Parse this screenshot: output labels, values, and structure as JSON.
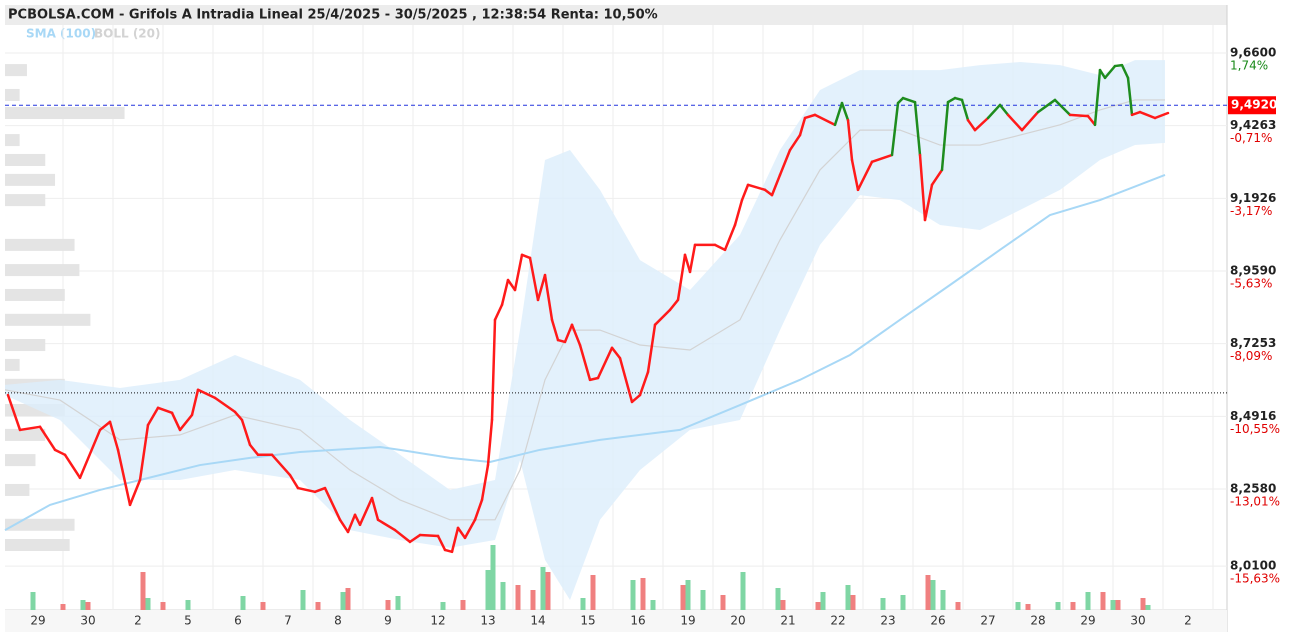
{
  "chart_data": {
    "type": "line",
    "title": "PCBOLSA.COM - Grifols A Intradia Lineal 25/4/2025 - 30/5/2025 , 12:38:54 Renta: 10,50%",
    "xlim": [
      -0.66,
      23.74
    ],
    "ylim": [
      7.869,
      9.75
    ],
    "categories": [
      "29",
      "30",
      "2",
      "5",
      "6",
      "7",
      "8",
      "9",
      "12",
      "13",
      "14",
      "15",
      "16",
      "19",
      "20",
      "21",
      "22",
      "23",
      "26",
      "27",
      "28",
      "29",
      "30",
      "2"
    ],
    "yticks": [
      {
        "value": 9.66,
        "label": "9,6600"
      },
      {
        "value": 9.4263,
        "label": "9,4263"
      },
      {
        "value": 9.1926,
        "label": "9,1926"
      },
      {
        "value": 8.959,
        "label": "8,9590"
      },
      {
        "value": 8.7253,
        "label": "8,7253"
      },
      {
        "value": 8.4916,
        "label": "8,4916"
      },
      {
        "value": 8.258,
        "label": "8,2580"
      },
      {
        "value": 8.01,
        "label": "8,0100"
      }
    ],
    "pct_ticks": [
      {
        "value": 1.74,
        "label": "1,74%"
      },
      {
        "value": -0.71,
        "label": "-0,71%"
      },
      {
        "value": -3.17,
        "label": "-3,17%"
      },
      {
        "value": -5.63,
        "label": "-5,63%"
      },
      {
        "value": -8.09,
        "label": "-8,09%"
      },
      {
        "value": -10.55,
        "label": "-10,55%"
      },
      {
        "value": -13.01,
        "label": "-13,01%"
      },
      {
        "value": -15.63,
        "label": "-15,63%"
      }
    ],
    "pos_color": "#1a8a1a",
    "neg_color": "#e00000",
    "grid": true,
    "price": {
      "up_color": "#1e8c1e",
      "down_color": "#ff1a1a",
      "x": [
        -0.6,
        -0.36,
        0.04,
        0.34,
        0.54,
        0.84,
        1.24,
        1.44,
        1.6,
        1.84,
        2.04,
        2.2,
        2.4,
        2.68,
        2.84,
        3.08,
        3.2,
        3.54,
        3.94,
        4.08,
        4.24,
        4.4,
        4.68,
        5.04,
        5.2,
        5.54,
        5.74,
        6.04,
        6.2,
        6.34,
        6.44,
        6.68,
        6.8,
        7.14,
        7.44,
        7.64,
        8.0,
        8.14,
        8.28,
        8.4,
        8.54,
        8.74,
        8.88,
        9.0,
        9.08,
        9.14,
        9.28,
        9.4,
        9.54,
        9.68,
        9.84,
        10.0,
        10.14,
        10.28,
        10.4,
        10.54,
        10.68,
        10.84,
        11.04,
        11.2,
        11.48,
        11.64,
        11.88,
        12.04,
        12.2,
        12.34,
        12.64,
        12.8,
        12.94,
        13.04,
        13.14,
        13.54,
        13.74,
        13.94,
        14.08,
        14.2,
        14.54,
        14.68,
        14.84,
        15.04,
        15.24,
        15.34,
        15.54,
        15.94,
        16.08,
        16.2,
        16.28,
        16.4,
        16.68,
        17.08,
        17.2,
        17.3,
        17.54,
        17.64,
        17.74,
        17.88,
        18.08,
        18.2,
        18.34,
        18.48,
        18.6,
        18.74,
        19.0,
        19.24,
        19.4,
        19.68,
        20.0,
        20.34,
        20.64,
        21.0,
        21.14,
        21.24,
        21.34,
        21.54,
        21.68,
        21.8,
        21.88,
        22.04,
        22.34,
        22.6
      ],
      "values": [
        8.56,
        8.448,
        8.458,
        8.384,
        8.368,
        8.294,
        8.448,
        8.474,
        8.384,
        8.207,
        8.287,
        8.464,
        8.519,
        8.503,
        8.448,
        8.496,
        8.577,
        8.551,
        8.506,
        8.48,
        8.4,
        8.368,
        8.368,
        8.303,
        8.261,
        8.249,
        8.261,
        8.159,
        8.12,
        8.175,
        8.143,
        8.229,
        8.159,
        8.126,
        8.088,
        8.11,
        8.107,
        8.062,
        8.056,
        8.133,
        8.101,
        8.159,
        8.223,
        8.335,
        8.48,
        8.802,
        8.85,
        8.93,
        8.898,
        9.011,
        9.001,
        8.866,
        8.946,
        8.802,
        8.737,
        8.731,
        8.786,
        8.721,
        8.609,
        8.615,
        8.712,
        8.679,
        8.538,
        8.56,
        8.634,
        8.786,
        8.834,
        8.866,
        9.011,
        8.956,
        9.043,
        9.043,
        9.027,
        9.107,
        9.187,
        9.236,
        9.22,
        9.203,
        9.268,
        9.348,
        9.396,
        9.451,
        9.461,
        9.429,
        9.499,
        9.444,
        9.316,
        9.22,
        9.31,
        9.332,
        9.499,
        9.515,
        9.502,
        9.332,
        9.123,
        9.236,
        9.284,
        9.502,
        9.515,
        9.509,
        9.444,
        9.412,
        9.451,
        9.493,
        9.461,
        9.412,
        9.47,
        9.509,
        9.461,
        9.457,
        9.429,
        9.605,
        9.58,
        9.618,
        9.621,
        9.58,
        9.461,
        9.47,
        9.451,
        9.467
      ]
    },
    "sma": {
      "name": "SMA (100)",
      "color": "#a8d8f6",
      "x": [
        -0.66,
        0.24,
        1.24,
        2.04,
        3.24,
        4.24,
        5.24,
        6.84,
        7.24,
        8.24,
        9.04,
        10.04,
        11.24,
        12.84,
        14.04,
        15.24,
        16.24,
        17.24,
        18.24,
        19.24,
        20.24,
        21.24,
        22.54
      ],
      "values": [
        8.126,
        8.207,
        8.255,
        8.287,
        8.335,
        8.358,
        8.377,
        8.393,
        8.384,
        8.358,
        8.345,
        8.384,
        8.416,
        8.448,
        8.528,
        8.609,
        8.689,
        8.802,
        8.914,
        9.027,
        9.139,
        9.187,
        9.268
      ]
    },
    "boll": {
      "name": "BOLL (20)",
      "color": "#d3d3d3",
      "fill": "#dcedfb",
      "x": [
        -0.66,
        0.44,
        1.64,
        2.84,
        3.94,
        5.24,
        6.24,
        7.24,
        8.24,
        9.14,
        9.64,
        10.14,
        10.64,
        11.24,
        12.04,
        13.04,
        14.04,
        14.84,
        15.64,
        16.44,
        17.24,
        18.04,
        18.84,
        19.64,
        20.44,
        21.24,
        21.94,
        22.54
      ],
      "upper": [
        8.593,
        8.609,
        8.583,
        8.609,
        8.689,
        8.609,
        8.48,
        8.368,
        8.255,
        8.287,
        8.769,
        9.316,
        9.348,
        9.22,
        8.994,
        8.898,
        9.075,
        9.348,
        9.541,
        9.605,
        9.605,
        9.605,
        9.621,
        9.631,
        9.621,
        9.589,
        9.637,
        9.637
      ],
      "middle": [
        8.577,
        8.544,
        8.416,
        8.432,
        8.496,
        8.448,
        8.319,
        8.223,
        8.159,
        8.159,
        8.319,
        8.609,
        8.769,
        8.769,
        8.721,
        8.705,
        8.802,
        9.059,
        9.284,
        9.412,
        9.412,
        9.364,
        9.364,
        9.396,
        9.429,
        9.477,
        9.509,
        9.509
      ],
      "lower": [
        8.56,
        8.48,
        8.287,
        8.287,
        8.319,
        8.287,
        8.126,
        8.094,
        8.069,
        8.094,
        8.351,
        8.03,
        7.901,
        8.159,
        8.319,
        8.448,
        8.48,
        8.769,
        9.043,
        9.203,
        9.187,
        9.107,
        9.091,
        9.155,
        9.22,
        9.316,
        9.364,
        9.371
      ]
    },
    "last": {
      "value": 9.492,
      "label": "9,4920",
      "color": "#ff0000",
      "line_color": "#2233dd"
    },
    "reference": 8.567,
    "volume": {
      "ylim": [
        0,
        100
      ],
      "up": {
        "color": "#7fd6a4",
        "x": [
          -0.1,
          0.9,
          2.2,
          3.0,
          4.1,
          5.3,
          6.1,
          7.2,
          8.1,
          9.0,
          9.1,
          9.3,
          10.1,
          10.9,
          11.9,
          12.3,
          13.0,
          13.3,
          14.1,
          14.8,
          15.7,
          16.2,
          16.9,
          17.3,
          17.9,
          18.1,
          19.6,
          20.4,
          21.0,
          21.5,
          22.2
        ],
        "values": [
          18,
          10,
          12,
          10,
          14,
          20,
          18,
          14,
          8,
          40,
          65,
          28,
          43,
          12,
          30,
          10,
          30,
          20,
          38,
          22,
          18,
          25,
          12,
          15,
          30,
          20,
          8,
          8,
          18,
          10,
          5
        ]
      },
      "down": {
        "color": "#f08080",
        "x": [
          0.5,
          1.0,
          2.1,
          2.5,
          4.5,
          5.6,
          6.2,
          7.0,
          8.5,
          9.6,
          9.9,
          10.2,
          11.1,
          12.1,
          12.9,
          13.7,
          14.9,
          15.6,
          16.3,
          17.8,
          18.4,
          19.8,
          20.7,
          21.3,
          21.6,
          22.1
        ],
        "values": [
          6,
          8,
          38,
          8,
          8,
          8,
          22,
          10,
          10,
          25,
          20,
          38,
          35,
          32,
          25,
          15,
          10,
          8,
          15,
          35,
          8,
          6,
          8,
          18,
          10,
          12
        ]
      }
    },
    "volume_profile": {
      "color": "#e4e4e4",
      "xlim": [
        0,
        100
      ],
      "levels": [
        9.605,
        9.525,
        9.467,
        9.38,
        9.316,
        9.252,
        9.187,
        9.043,
        8.962,
        8.882,
        8.802,
        8.721,
        8.657,
        8.593,
        8.512,
        8.432,
        8.351,
        8.255,
        8.143,
        8.078
      ],
      "values": [
        1.8,
        1.2,
        9.8,
        1.2,
        3.3,
        4.1,
        3.3,
        5.7,
        6.1,
        4.9,
        7.0,
        3.3,
        1.2,
        4.9,
        4.9,
        3.3,
        2.5,
        2.0,
        5.7,
        5.3
      ]
    }
  }
}
